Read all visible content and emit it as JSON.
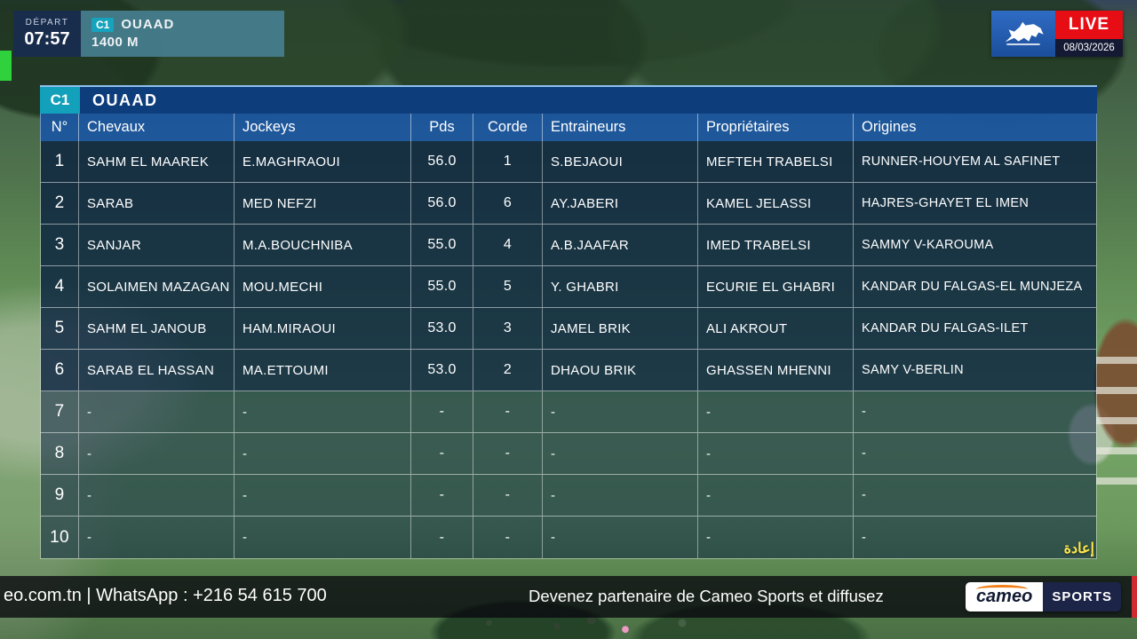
{
  "header": {
    "depart_label": "DÉPART",
    "depart_time": "07:57",
    "race_code": "C1",
    "race_name": "OUAAD",
    "race_distance": "1400 M",
    "live_label": "LIVE",
    "live_date": "08/03/2026"
  },
  "watermark": "إعادة",
  "table": {
    "title_code": "C1",
    "title_name": "OUAAD",
    "columns": [
      "N°",
      "Chevaux",
      "Jockeys",
      "Pds",
      "Corde",
      "Entraineurs",
      "Propriétaires",
      "Origines"
    ],
    "rows": [
      [
        "1",
        "SAHM EL MAAREK",
        "E.MAGHRAOUI",
        "56.0",
        "1",
        "S.BEJAOUI",
        "MEFTEH TRABELSI",
        "RUNNER-HOUYEM AL SAFINET"
      ],
      [
        "2",
        "SARAB",
        "MED NEFZI",
        "56.0",
        "6",
        "AY.JABERI",
        "KAMEL JELASSI",
        "HAJRES-GHAYET EL IMEN"
      ],
      [
        "3",
        "SANJAR",
        "M.A.BOUCHNIBA",
        "55.0",
        "4",
        "A.B.JAAFAR",
        "IMED TRABELSI",
        "SAMMY V-KAROUMA"
      ],
      [
        "4",
        "SOLAIMEN MAZAGAN",
        "MOU.MECHI",
        "55.0",
        "5",
        "Y. GHABRI",
        "ECURIE EL GHABRI",
        "KANDAR DU FALGAS-EL MUNJEZA"
      ],
      [
        "5",
        "SAHM EL JANOUB",
        "HAM.MIRAOUI",
        "53.0",
        "3",
        "JAMEL BRIK",
        "ALI AKROUT",
        "KANDAR DU FALGAS-ILET"
      ],
      [
        "6",
        "SARAB EL HASSAN",
        "MA.ETTOUMI",
        "53.0",
        "2",
        "DHAOU BRIK",
        "GHASSEN MHENNI",
        "SAMY V-BERLIN"
      ],
      [
        "7",
        "-",
        "-",
        "-",
        "-",
        "-",
        "-",
        "-"
      ],
      [
        "8",
        "-",
        "-",
        "-",
        "-",
        "-",
        "-",
        "-"
      ],
      [
        "9",
        "-",
        "-",
        "-",
        "-",
        "-",
        "-",
        "-"
      ],
      [
        "10",
        "-",
        "-",
        "-",
        "-",
        "-",
        "-",
        "-"
      ]
    ]
  },
  "ticker": {
    "left_text": "eo.com.tn | WhatsApp : +216 54 615 700",
    "message": "Devenez partenaire de Cameo Sports et diffusez",
    "brand_cameo": "cameo",
    "brand_sports": "SPORTS"
  },
  "colors": {
    "accent_teal": "#13a0ba",
    "header_blue": "#1b569e",
    "title_navy": "#0e3d7c",
    "live_red": "#e60d15",
    "brand_orange": "#f08019",
    "watermark_yellow": "#ffe84d"
  }
}
